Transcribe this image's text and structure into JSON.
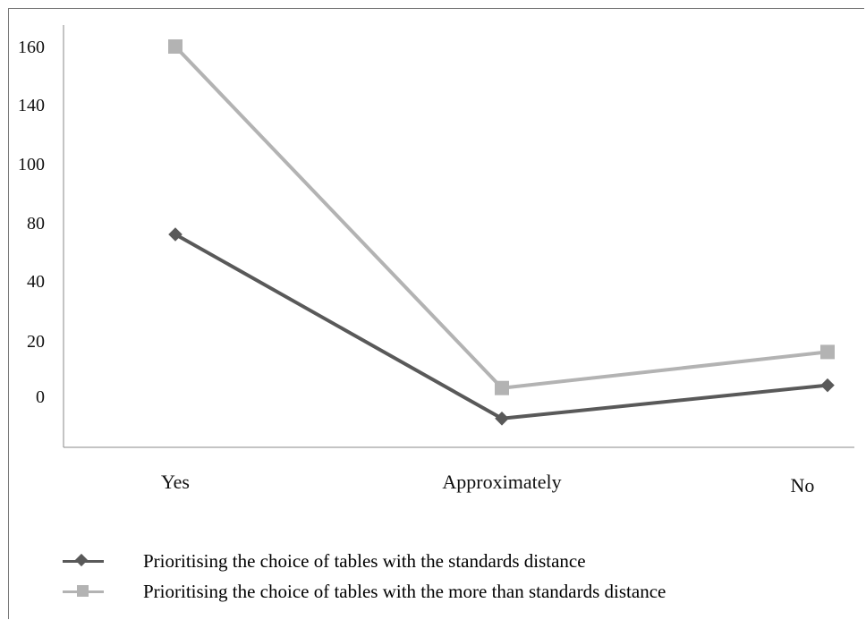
{
  "chart_data": {
    "type": "line",
    "title": "",
    "xlabel": "",
    "ylabel": "",
    "categories": [
      "Yes",
      "Approximately",
      "No"
    ],
    "y_tick_labels": [
      "160",
      "140",
      "100",
      "80",
      "40",
      "20",
      "0"
    ],
    "grid": false,
    "legend_position": "bottom",
    "series": [
      {
        "name": "Prioritising the choice of tables with the standards distance",
        "marker": "diamond",
        "color": "#595959",
        "values": [
          72,
          -8,
          4
        ]
      },
      {
        "name": "Prioritising the choice of tables with the more than standards distance",
        "marker": "square",
        "color": "#b3b3b3",
        "values": [
          160,
          3,
          16
        ]
      }
    ]
  }
}
